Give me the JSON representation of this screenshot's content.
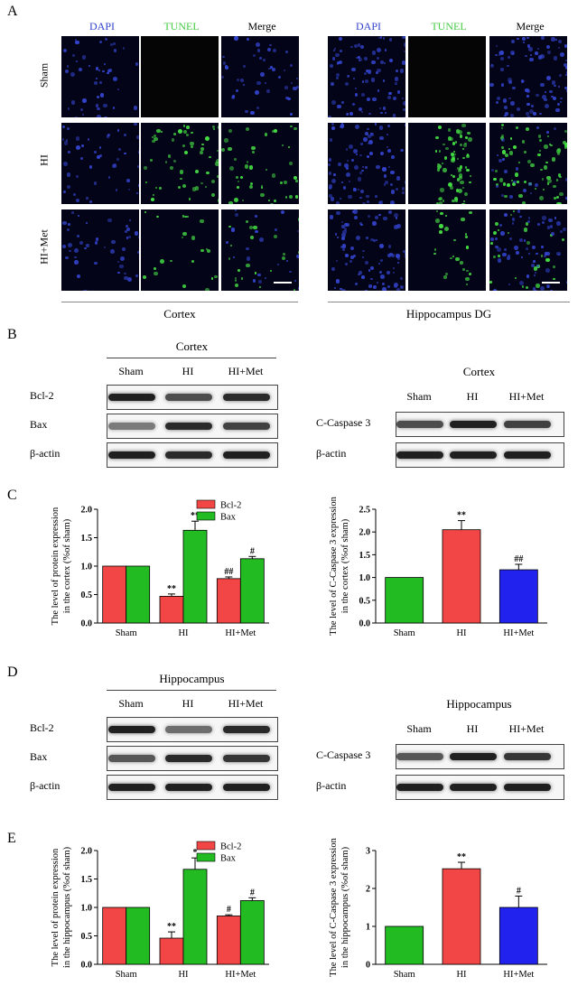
{
  "panelA": {
    "letter": "A",
    "columns": [
      "DAPI",
      "TUNEL",
      "Merge"
    ],
    "rows": [
      "Sham",
      "HI",
      "HI+Met"
    ],
    "groups": [
      "Cortex",
      "Hippocampus DG"
    ],
    "colors": {
      "dapi": "#3344cc",
      "tunel": "#44dd44"
    }
  },
  "panelB": {
    "letter": "B",
    "left": {
      "title": "Cortex",
      "lanes": [
        "Sham",
        "HI",
        "HI+Met"
      ],
      "proteins": [
        "Bcl-2",
        "Bax",
        "β-actin"
      ]
    },
    "right": {
      "title": "Cortex",
      "lanes": [
        "Sham",
        "HI",
        "HI+Met"
      ],
      "proteins": [
        "C-Caspase 3",
        "β-actin"
      ]
    }
  },
  "panelD": {
    "letter": "D",
    "left": {
      "title": "Hippocampus",
      "lanes": [
        "Sham",
        "HI",
        "HI+Met"
      ],
      "proteins": [
        "Bcl-2",
        "Bax",
        "β-actin"
      ]
    },
    "right": {
      "title": "Hippocampus",
      "lanes": [
        "Sham",
        "HI",
        "HI+Met"
      ],
      "proteins": [
        "C-Caspase 3",
        "β-actin"
      ]
    }
  },
  "panelC": {
    "letter": "C"
  },
  "panelE": {
    "letter": "E"
  },
  "chart_data": [
    {
      "id": "C-left",
      "type": "bar",
      "categories": [
        "Sham",
        "HI",
        "HI+Met"
      ],
      "series": [
        {
          "name": "Bcl-2",
          "color": "#f24646",
          "values": [
            1.0,
            0.47,
            0.78
          ],
          "errors": [
            0,
            0.04,
            0.03
          ],
          "marks": [
            "",
            "**",
            "##"
          ]
        },
        {
          "name": "Bax",
          "color": "#22bb22",
          "values": [
            1.0,
            1.63,
            1.13
          ],
          "errors": [
            0,
            0.16,
            0.04
          ],
          "marks": [
            "",
            "**",
            "#"
          ]
        }
      ],
      "ylabel": "The level of protein expression in the cortex (%of sham)",
      "ylim": [
        0,
        2.0
      ],
      "yticks": [
        "0.0",
        "0.5",
        "1.0",
        "1.5",
        "2.0"
      ],
      "ystep": 0.5
    },
    {
      "id": "C-right",
      "type": "bar",
      "categories": [
        "Sham",
        "HI",
        "HI+Met"
      ],
      "values": [
        1.0,
        2.05,
        1.17
      ],
      "errors": [
        0,
        0.2,
        0.12
      ],
      "marks": [
        "",
        "**",
        "##"
      ],
      "colors": [
        "#22bb22",
        "#f24646",
        "#2222ee"
      ],
      "ylabel": "The level of C-Caspase 3 expression in the cortex (%of sham)",
      "ylim": [
        0,
        2.5
      ],
      "yticks": [
        "0.0",
        "0.5",
        "1.0",
        "1.5",
        "2.0",
        "2.5"
      ],
      "ystep": 0.5
    },
    {
      "id": "E-left",
      "type": "bar",
      "categories": [
        "Sham",
        "HI",
        "HI+Met"
      ],
      "series": [
        {
          "name": "Bcl-2",
          "color": "#f24646",
          "values": [
            1.0,
            0.46,
            0.85
          ],
          "errors": [
            0,
            0.11,
            0.02
          ],
          "marks": [
            "",
            "**",
            "#"
          ]
        },
        {
          "name": "Bax",
          "color": "#22bb22",
          "values": [
            1.0,
            1.67,
            1.12
          ],
          "errors": [
            0,
            0.2,
            0.05
          ],
          "marks": [
            "",
            "*",
            "#"
          ]
        }
      ],
      "ylabel": "The level of protein expression in the hippocampus (%of sham)",
      "ylim": [
        0,
        2.0
      ],
      "yticks": [
        "0.0",
        "0.5",
        "1.0",
        "1.5",
        "2.0"
      ],
      "ystep": 0.5
    },
    {
      "id": "E-right",
      "type": "bar",
      "categories": [
        "Sham",
        "HI",
        "HI+Met"
      ],
      "values": [
        1.0,
        2.52,
        1.5
      ],
      "errors": [
        0,
        0.17,
        0.3
      ],
      "marks": [
        "",
        "**",
        "#"
      ],
      "colors": [
        "#22bb22",
        "#f24646",
        "#2222ee"
      ],
      "ylabel": "The level of C-Caspase 3 expression in the hippocampus (%of sham)",
      "ylim": [
        0,
        3
      ],
      "yticks": [
        "0",
        "1",
        "2",
        "3"
      ],
      "ystep": 1
    }
  ]
}
